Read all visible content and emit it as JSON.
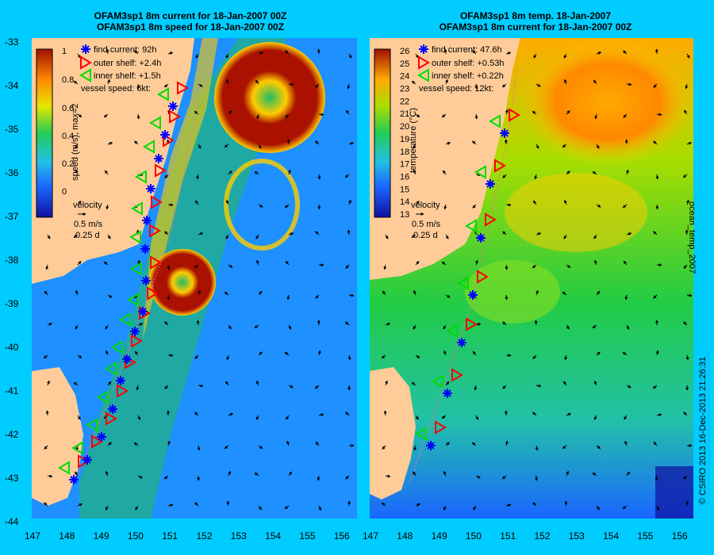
{
  "left": {
    "title_line1": "OFAM3sp1 8m current for 18-Jan-2007 00Z",
    "title_line2": "OFAM3sp1 8m speed for 18-Jan-2007 00Z",
    "colorbar_label": "speed (m/s), max=2",
    "colorbar_ticks": [
      "1",
      "0.8",
      "0.6",
      "0.4",
      "0.2",
      "0"
    ],
    "colorbar_stops": [
      "#1010a0",
      "#1a66ff",
      "#22c0e6",
      "#22cc55",
      "#e6e600",
      "#ff8800",
      "#a01000"
    ],
    "legend": [
      {
        "marker": "asterisk",
        "color": "#0000ff",
        "text": "find current: 92h"
      },
      {
        "marker": "triangle-right",
        "color": "#ff0000",
        "text": "outer shelf: +2.4h"
      },
      {
        "marker": "triangle-left",
        "color": "#00dd00",
        "text": "inner shelf: +1.5h"
      },
      {
        "marker": "none",
        "color": "#000000",
        "text": "vessel speed: 6kt:"
      }
    ],
    "velocity_label": "velocity",
    "velocity_scale": "0.5 m/s",
    "velocity_time": "0.25 d"
  },
  "right": {
    "title_line1": "OFAM3sp1 8m temp. 18-Jan-2007",
    "title_line2": "OFAM3sp1 8m current for 18-Jan-2007 00Z",
    "colorbar_label": "temperature (°C)",
    "colorbar_ticks": [
      "26",
      "25",
      "24",
      "23",
      "22",
      "21",
      "20",
      "19",
      "18",
      "17",
      "16",
      "15",
      "14",
      "13"
    ],
    "colorbar_stops": [
      "#1010a0",
      "#1a66ff",
      "#22c0e6",
      "#22cc55",
      "#aadd00",
      "#ffaa00",
      "#a01000"
    ],
    "legend": [
      {
        "marker": "asterisk",
        "color": "#0000ff",
        "text": "find current: 47.6h"
      },
      {
        "marker": "triangle-right",
        "color": "#ff0000",
        "text": "outer shelf: +0.53h"
      },
      {
        "marker": "triangle-left",
        "color": "#00dd00",
        "text": "inner shelf: +0.22h"
      },
      {
        "marker": "none",
        "color": "#000000",
        "text": "vessel speed: 12kt:"
      }
    ],
    "velocity_label": "velocity",
    "velocity_scale": "0.5 m/s",
    "velocity_time": "0.25 d"
  },
  "axes": {
    "lat_labels": [
      "-33",
      "-34",
      "-35",
      "-36",
      "-37",
      "-38",
      "-39",
      "-40",
      "-41",
      "-42",
      "-43",
      "-44"
    ],
    "lon_labels": [
      "147",
      "148",
      "149",
      "150",
      "151",
      "152",
      "153",
      "154",
      "155",
      "156"
    ]
  },
  "side_labels": {
    "ocean_temp": "ocean_temp_2007",
    "ocean_temp_right": "ocean_temp_2007",
    "copyright": "© CSIRO 2013   16-Dec-2013 21:26:31"
  },
  "colors": {
    "background": "#00ccff",
    "land": "#ffcc99",
    "ocean_base_left": "#1e90ff",
    "ocean_base_right": "#22c07a"
  }
}
